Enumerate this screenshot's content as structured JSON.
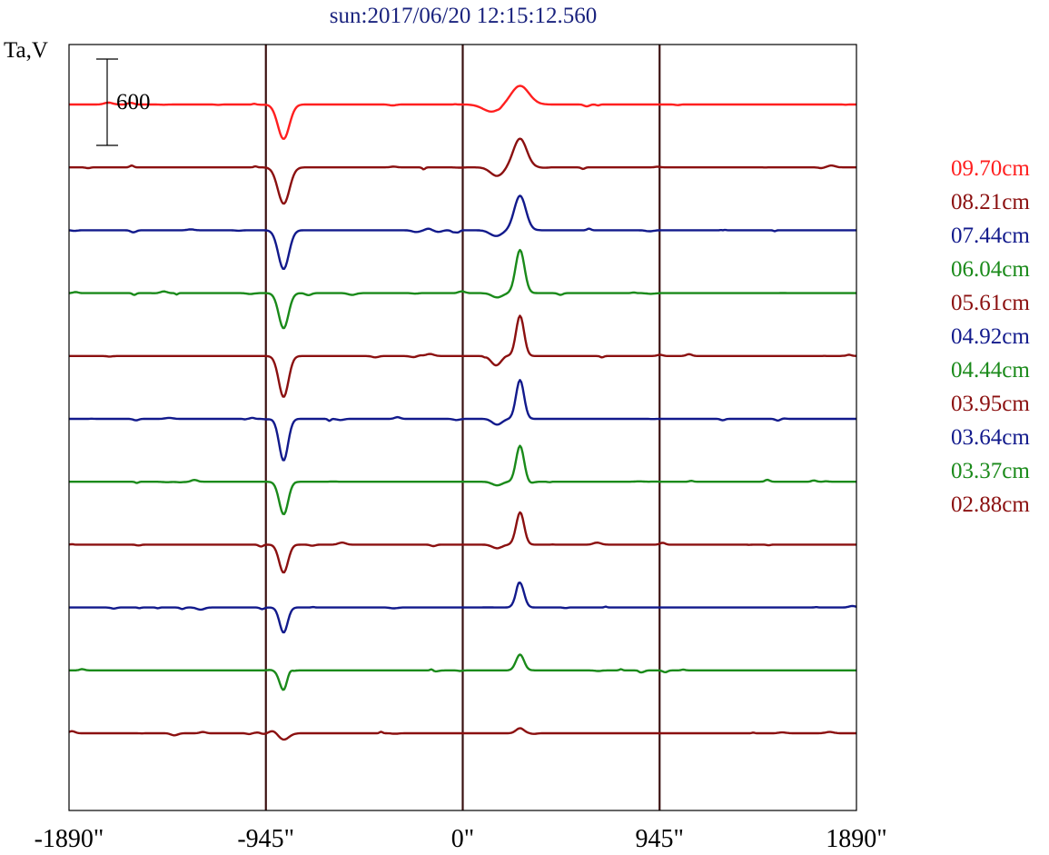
{
  "chart_data": {
    "type": "line",
    "title": "sun:2017/06/20 12:15:12.560",
    "ylabel": "Ta,V",
    "xlabel": "",
    "x_range": [
      -1890,
      1890
    ],
    "x_ticks": [
      -1890,
      -945,
      0,
      945,
      1890
    ],
    "x_tick_labels": [
      "-1890\"",
      "-945\"",
      "0\"",
      "945\"",
      "1890\""
    ],
    "vertical_markers": [
      -945,
      0,
      945
    ],
    "scale_bar": {
      "value": 600,
      "label": "600"
    },
    "colors": {
      "red": "#ff1f1f",
      "maroon": "#8b1010",
      "navy": "#121a8c",
      "green": "#1a8a1a",
      "frame": "#000000",
      "marker": "#3a1010"
    },
    "series": [
      {
        "name": "09.70cm",
        "color": "#ff1f1f",
        "features": [
          {
            "x": -860,
            "peak": -240,
            "width": 26
          },
          {
            "x": 275,
            "peak": 130,
            "width": 40
          },
          {
            "x": 140,
            "peak": -50,
            "width": 40
          }
        ]
      },
      {
        "name": "08.21cm",
        "color": "#8b1010",
        "features": [
          {
            "x": -860,
            "peak": -260,
            "width": 26
          },
          {
            "x": 275,
            "peak": 200,
            "width": 30
          },
          {
            "x": 165,
            "peak": -60,
            "width": 30
          }
        ]
      },
      {
        "name": "07.44cm",
        "color": "#121a8c",
        "features": [
          {
            "x": -860,
            "peak": -270,
            "width": 24
          },
          {
            "x": 275,
            "peak": 240,
            "width": 26
          },
          {
            "x": 160,
            "peak": -40,
            "width": 28
          }
        ]
      },
      {
        "name": "06.04cm",
        "color": "#1a8a1a",
        "features": [
          {
            "x": -860,
            "peak": -245,
            "width": 22
          },
          {
            "x": 275,
            "peak": 300,
            "width": 20
          },
          {
            "x": 165,
            "peak": -30,
            "width": 24
          }
        ]
      },
      {
        "name": "05.61cm",
        "color": "#8b1010",
        "features": [
          {
            "x": -860,
            "peak": -285,
            "width": 22
          },
          {
            "x": 275,
            "peak": 280,
            "width": 18
          },
          {
            "x": 160,
            "peak": -65,
            "width": 22
          }
        ]
      },
      {
        "name": "04.92cm",
        "color": "#121a8c",
        "features": [
          {
            "x": -860,
            "peak": -290,
            "width": 20
          },
          {
            "x": 275,
            "peak": 270,
            "width": 18
          },
          {
            "x": 165,
            "peak": -40,
            "width": 22
          }
        ]
      },
      {
        "name": "04.44cm",
        "color": "#1a8a1a",
        "features": [
          {
            "x": -860,
            "peak": -225,
            "width": 20
          },
          {
            "x": 275,
            "peak": 250,
            "width": 18
          },
          {
            "x": 165,
            "peak": -25,
            "width": 22
          }
        ]
      },
      {
        "name": "03.95cm",
        "color": "#8b1010",
        "features": [
          {
            "x": -860,
            "peak": -195,
            "width": 20
          },
          {
            "x": 275,
            "peak": 230,
            "width": 18
          },
          {
            "x": 165,
            "peak": -25,
            "width": 22
          }
        ]
      },
      {
        "name": "03.64cm",
        "color": "#121a8c",
        "features": [
          {
            "x": -860,
            "peak": -175,
            "width": 18
          },
          {
            "x": 275,
            "peak": 170,
            "width": 18
          }
        ]
      },
      {
        "name": "03.37cm",
        "color": "#1a8a1a",
        "features": [
          {
            "x": -860,
            "peak": -140,
            "width": 18
          },
          {
            "x": 275,
            "peak": 110,
            "width": 18
          },
          {
            "x": -830,
            "peak": 35,
            "width": 14
          }
        ]
      },
      {
        "name": "02.88cm",
        "color": "#8b1010",
        "features": [
          {
            "x": -860,
            "peak": -45,
            "width": 24
          },
          {
            "x": 275,
            "peak": 35,
            "width": 18
          },
          {
            "x": -910,
            "peak": 20,
            "width": 20
          }
        ]
      }
    ]
  }
}
